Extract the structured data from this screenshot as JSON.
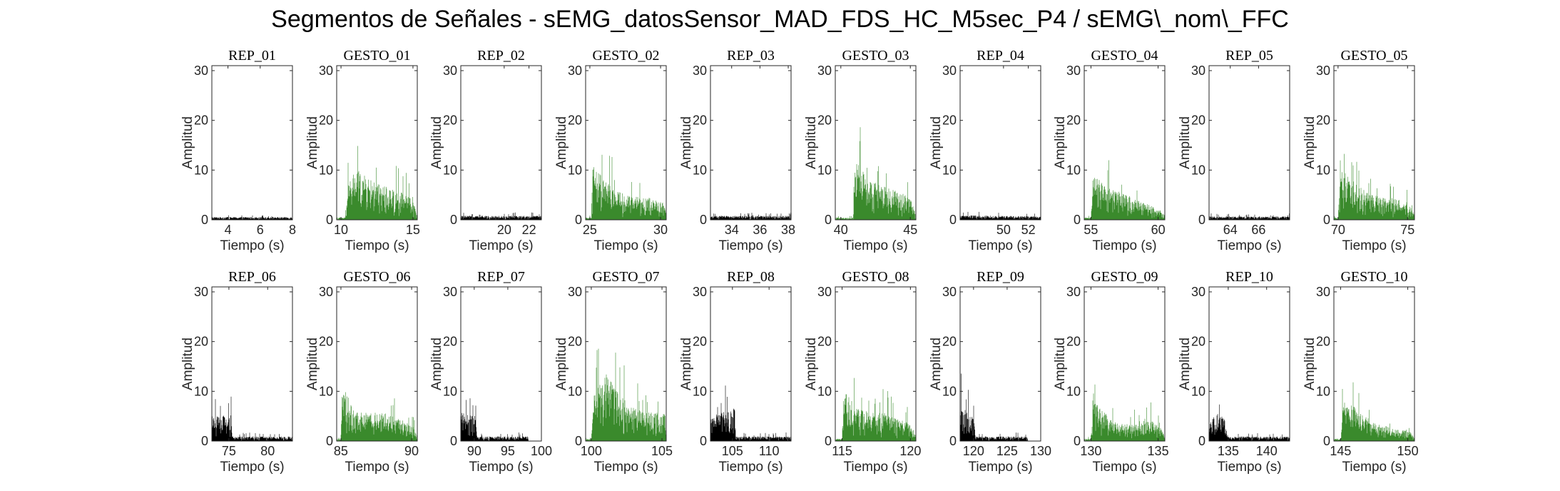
{
  "title": "Segmentos de Señales - sEMG_datosSensor_MAD_FDS_HC_M5sec_P4 / sEMG\\_nom\\_FFC",
  "colors": {
    "rep": "#000000",
    "gesto": "#3a8a2c",
    "axes": "#262626"
  },
  "chart_data": [
    {
      "type": "bar",
      "title": "REP_01",
      "kind": "rep",
      "xlabel": "Tiempo (s)",
      "ylabel": "Amplitud",
      "xlim": [
        3,
        8
      ],
      "ylim": [
        0,
        31
      ],
      "xticks": [
        4,
        6,
        8
      ],
      "yticks": [
        0,
        10,
        20,
        30
      ],
      "profile": [
        [
          3,
          0.5
        ],
        [
          8,
          0.5
        ]
      ]
    },
    {
      "type": "bar",
      "title": "GESTO_01",
      "kind": "gesto",
      "xlabel": "Tiempo (s)",
      "ylabel": "Amplitud",
      "xlim": [
        9.7,
        15.3
      ],
      "ylim": [
        0,
        31
      ],
      "xticks": [
        10,
        15
      ],
      "yticks": [
        0,
        10,
        20,
        30
      ],
      "profile": [
        [
          9.7,
          0.4
        ],
        [
          10.3,
          0.4
        ],
        [
          10.5,
          6
        ],
        [
          11,
          9
        ],
        [
          12,
          7
        ],
        [
          13,
          6
        ],
        [
          14,
          5
        ],
        [
          15,
          4
        ],
        [
          15.3,
          1
        ]
      ]
    },
    {
      "type": "bar",
      "title": "REP_02",
      "kind": "rep",
      "xlabel": "Tiempo (s)",
      "ylabel": "Amplitud",
      "xlim": [
        16.5,
        23
      ],
      "ylim": [
        0,
        31
      ],
      "xticks": [
        20,
        22
      ],
      "yticks": [
        0,
        10,
        20,
        30
      ],
      "profile": [
        [
          16.5,
          0.7
        ],
        [
          23,
          0.7
        ]
      ]
    },
    {
      "type": "bar",
      "title": "GESTO_02",
      "kind": "gesto",
      "xlabel": "Tiempo (s)",
      "ylabel": "Amplitud",
      "xlim": [
        24.7,
        30.4
      ],
      "ylim": [
        0,
        31
      ],
      "xticks": [
        25,
        30
      ],
      "yticks": [
        0,
        10,
        20,
        30
      ],
      "profile": [
        [
          24.7,
          0.4
        ],
        [
          25.1,
          0.4
        ],
        [
          25.2,
          10
        ],
        [
          26,
          7
        ],
        [
          27,
          5
        ],
        [
          28,
          4
        ],
        [
          29,
          4
        ],
        [
          30.2,
          3
        ],
        [
          30.4,
          1
        ]
      ]
    },
    {
      "type": "bar",
      "title": "REP_03",
      "kind": "rep",
      "xlabel": "Tiempo (s)",
      "ylabel": "Amplitud",
      "xlim": [
        32.5,
        38.2
      ],
      "ylim": [
        0,
        31
      ],
      "xticks": [
        34,
        36,
        38
      ],
      "yticks": [
        0,
        10,
        20,
        30
      ],
      "profile": [
        [
          32.5,
          0.7
        ],
        [
          38.2,
          0.7
        ]
      ]
    },
    {
      "type": "bar",
      "title": "GESTO_03",
      "kind": "gesto",
      "xlabel": "Tiempo (s)",
      "ylabel": "Amplitud",
      "xlim": [
        39.6,
        45.4
      ],
      "ylim": [
        0,
        31
      ],
      "xticks": [
        40,
        45
      ],
      "yticks": [
        0,
        10,
        20,
        30
      ],
      "profile": [
        [
          39.6,
          0.4
        ],
        [
          40.9,
          0.4
        ],
        [
          41,
          11
        ],
        [
          42,
          7
        ],
        [
          43,
          6
        ],
        [
          44,
          5
        ],
        [
          45,
          4
        ],
        [
          45.4,
          1
        ]
      ]
    },
    {
      "type": "bar",
      "title": "REP_04",
      "kind": "rep",
      "xlabel": "Tiempo (s)",
      "ylabel": "Amplitud",
      "xlim": [
        46.5,
        53
      ],
      "ylim": [
        0,
        31
      ],
      "xticks": [
        50,
        52
      ],
      "yticks": [
        0,
        10,
        20,
        30
      ],
      "profile": [
        [
          46.5,
          0.8
        ],
        [
          53,
          0.6
        ]
      ]
    },
    {
      "type": "bar",
      "title": "GESTO_04",
      "kind": "gesto",
      "xlabel": "Tiempo (s)",
      "ylabel": "Amplitud",
      "xlim": [
        54.5,
        60.5
      ],
      "ylim": [
        0,
        31
      ],
      "xticks": [
        55,
        60
      ],
      "yticks": [
        0,
        10,
        20,
        30
      ],
      "profile": [
        [
          54.5,
          0.4
        ],
        [
          55,
          0.4
        ],
        [
          55.2,
          8
        ],
        [
          56,
          6
        ],
        [
          57,
          5
        ],
        [
          58,
          4
        ],
        [
          59,
          3
        ],
        [
          60,
          2
        ],
        [
          60.5,
          1
        ]
      ]
    },
    {
      "type": "bar",
      "title": "REP_05",
      "kind": "rep",
      "xlabel": "Tiempo (s)",
      "ylabel": "Amplitud",
      "xlim": [
        62.5,
        68.2
      ],
      "ylim": [
        0,
        31
      ],
      "xticks": [
        64,
        66
      ],
      "yticks": [
        0,
        10,
        20,
        30
      ],
      "profile": [
        [
          62.5,
          0.6
        ],
        [
          68.2,
          0.6
        ]
      ]
    },
    {
      "type": "bar",
      "title": "GESTO_05",
      "kind": "gesto",
      "xlabel": "Tiempo (s)",
      "ylabel": "Amplitud",
      "xlim": [
        69.7,
        75.5
      ],
      "ylim": [
        0,
        31
      ],
      "xticks": [
        70,
        75
      ],
      "yticks": [
        0,
        10,
        20,
        30
      ],
      "profile": [
        [
          69.7,
          0.4
        ],
        [
          70,
          0.4
        ],
        [
          70.2,
          9
        ],
        [
          71,
          7
        ],
        [
          72,
          5
        ],
        [
          73,
          4
        ],
        [
          74,
          4
        ],
        [
          75,
          3
        ],
        [
          75.5,
          1
        ]
      ]
    },
    {
      "type": "bar",
      "title": "REP_06",
      "kind": "rep",
      "xlabel": "Tiempo (s)",
      "ylabel": "Amplitud",
      "xlim": [
        72.8,
        83.2
      ],
      "ylim": [
        0,
        31
      ],
      "xticks": [
        75,
        80
      ],
      "yticks": [
        0,
        10,
        20,
        30
      ],
      "profile": [
        [
          72.8,
          4.5
        ],
        [
          75.3,
          4.5
        ],
        [
          75.5,
          0.8
        ],
        [
          83.2,
          0.8
        ]
      ]
    },
    {
      "type": "bar",
      "title": "GESTO_06",
      "kind": "gesto",
      "xlabel": "Tiempo (s)",
      "ylabel": "Amplitud",
      "xlim": [
        84.7,
        90.4
      ],
      "ylim": [
        0,
        31
      ],
      "xticks": [
        85,
        90
      ],
      "yticks": [
        0,
        10,
        20,
        30
      ],
      "profile": [
        [
          84.7,
          0.4
        ],
        [
          85,
          0.4
        ],
        [
          85.1,
          10
        ],
        [
          86,
          5
        ],
        [
          87,
          5
        ],
        [
          88,
          5
        ],
        [
          89,
          4
        ],
        [
          90,
          3
        ],
        [
          90.4,
          1
        ]
      ]
    },
    {
      "type": "bar",
      "title": "REP_07",
      "kind": "rep",
      "xlabel": "Tiempo (s)",
      "ylabel": "Amplitud",
      "xlim": [
        88,
        100
      ],
      "ylim": [
        0,
        31
      ],
      "xticks": [
        90,
        95,
        100
      ],
      "yticks": [
        0,
        10,
        20,
        30
      ],
      "profile": [
        [
          88,
          5
        ],
        [
          90.2,
          4.5
        ],
        [
          90.4,
          0.8
        ],
        [
          98,
          0.8
        ],
        [
          98.1,
          0
        ]
      ]
    },
    {
      "type": "bar",
      "title": "GESTO_07",
      "kind": "gesto",
      "xlabel": "Tiempo (s)",
      "ylabel": "Amplitud",
      "xlim": [
        99.6,
        105.3
      ],
      "ylim": [
        0,
        31
      ],
      "xticks": [
        100,
        105
      ],
      "yticks": [
        0,
        10,
        20,
        30
      ],
      "profile": [
        [
          99.6,
          0.4
        ],
        [
          100,
          0.4
        ],
        [
          100.2,
          8
        ],
        [
          101,
          12
        ],
        [
          102,
          8
        ],
        [
          103,
          6
        ],
        [
          104,
          5
        ],
        [
          105.3,
          5
        ]
      ]
    },
    {
      "type": "bar",
      "title": "REP_08",
      "kind": "rep",
      "xlabel": "Tiempo (s)",
      "ylabel": "Amplitud",
      "xlim": [
        102,
        113
      ],
      "ylim": [
        0,
        31
      ],
      "xticks": [
        105,
        110
      ],
      "yticks": [
        0,
        10,
        20,
        30
      ],
      "profile": [
        [
          102,
          4
        ],
        [
          104.5,
          6
        ],
        [
          105.3,
          6
        ],
        [
          105.5,
          0.8
        ],
        [
          113,
          0.8
        ]
      ]
    },
    {
      "type": "bar",
      "title": "GESTO_08",
      "kind": "gesto",
      "xlabel": "Tiempo (s)",
      "ylabel": "Amplitud",
      "xlim": [
        114.5,
        120.4
      ],
      "ylim": [
        0,
        31
      ],
      "xticks": [
        115,
        120
      ],
      "yticks": [
        0,
        10,
        20,
        30
      ],
      "profile": [
        [
          114.5,
          0.4
        ],
        [
          115,
          0.4
        ],
        [
          115.1,
          9
        ],
        [
          116,
          6
        ],
        [
          117,
          5
        ],
        [
          118,
          5
        ],
        [
          119,
          4
        ],
        [
          120,
          3
        ],
        [
          120.4,
          1
        ]
      ]
    },
    {
      "type": "bar",
      "title": "REP_09",
      "kind": "rep",
      "xlabel": "Tiempo (s)",
      "ylabel": "Amplitud",
      "xlim": [
        118,
        130
      ],
      "ylim": [
        0,
        31
      ],
      "xticks": [
        120,
        125,
        130
      ],
      "yticks": [
        0,
        10,
        20,
        30
      ],
      "profile": [
        [
          118,
          7
        ],
        [
          119,
          5
        ],
        [
          120,
          4
        ],
        [
          120.3,
          0.8
        ],
        [
          128,
          0.8
        ],
        [
          128.1,
          0
        ]
      ]
    },
    {
      "type": "bar",
      "title": "GESTO_09",
      "kind": "gesto",
      "xlabel": "Tiempo (s)",
      "ylabel": "Amplitud",
      "xlim": [
        129.5,
        135.5
      ],
      "ylim": [
        0,
        31
      ],
      "xticks": [
        130,
        135
      ],
      "yticks": [
        0,
        10,
        20,
        30
      ],
      "profile": [
        [
          129.5,
          0.4
        ],
        [
          130,
          0.4
        ],
        [
          130.2,
          7
        ],
        [
          131,
          5
        ],
        [
          132,
          3
        ],
        [
          133,
          3
        ],
        [
          134,
          4
        ],
        [
          135,
          3
        ],
        [
          135.5,
          1
        ]
      ]
    },
    {
      "type": "bar",
      "title": "REP_10",
      "kind": "rep",
      "xlabel": "Tiempo (s)",
      "ylabel": "Amplitud",
      "xlim": [
        132.5,
        143
      ],
      "ylim": [
        0,
        31
      ],
      "xticks": [
        135,
        140
      ],
      "yticks": [
        0,
        10,
        20,
        30
      ],
      "profile": [
        [
          132.5,
          3
        ],
        [
          133.5,
          5
        ],
        [
          134.5,
          4
        ],
        [
          135,
          0.8
        ],
        [
          143,
          0.8
        ]
      ]
    },
    {
      "type": "bar",
      "title": "GESTO_10",
      "kind": "gesto",
      "xlabel": "Tiempo (s)",
      "ylabel": "Amplitud",
      "xlim": [
        144.5,
        150.5
      ],
      "ylim": [
        0,
        31
      ],
      "xticks": [
        145,
        150
      ],
      "yticks": [
        0,
        10,
        20,
        30
      ],
      "profile": [
        [
          144.5,
          0.4
        ],
        [
          145,
          0.4
        ],
        [
          145.2,
          7
        ],
        [
          146,
          6
        ],
        [
          147,
          4
        ],
        [
          148,
          3
        ],
        [
          149,
          2
        ],
        [
          150,
          2
        ],
        [
          150.5,
          1
        ]
      ]
    }
  ]
}
